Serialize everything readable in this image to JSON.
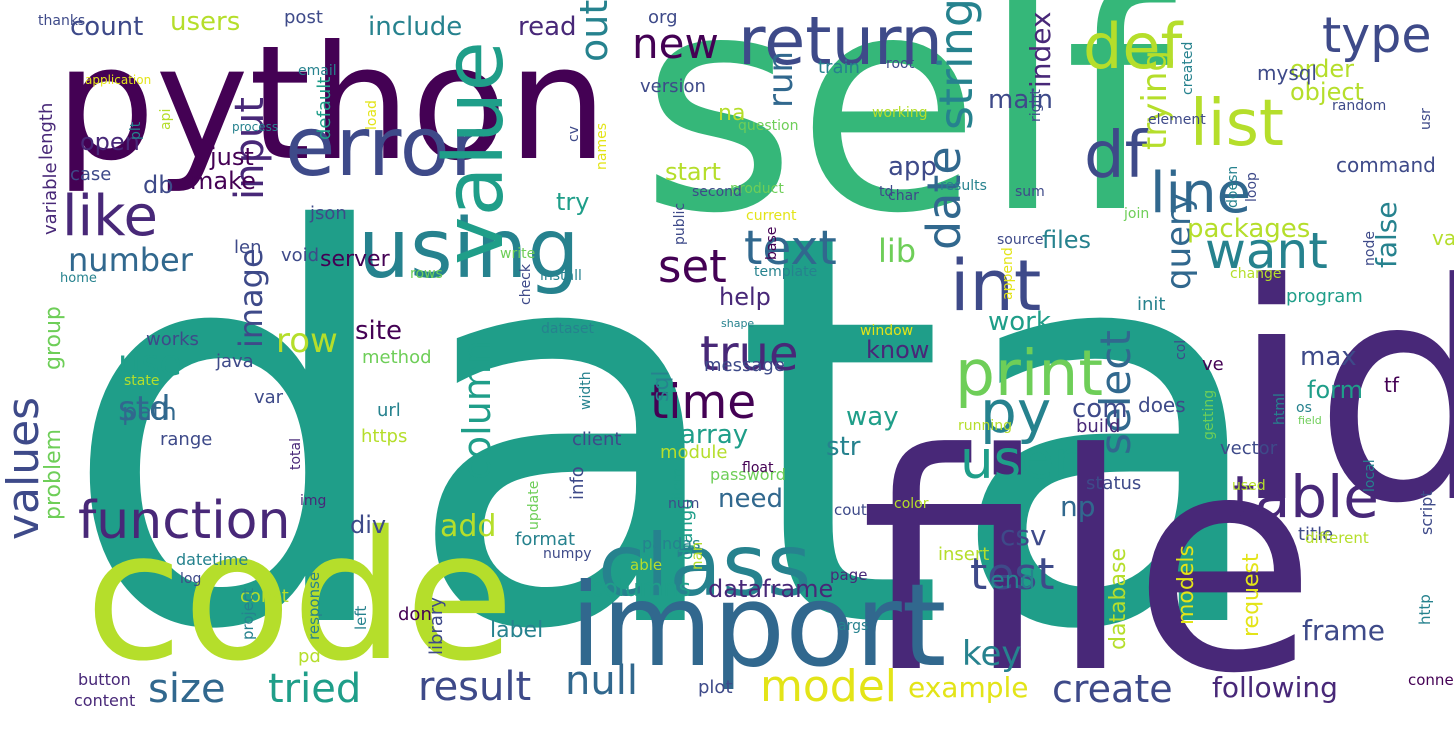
{
  "palette": {
    "dark_purple": "#440154",
    "purple": "#482878",
    "indigo": "#3e4a89",
    "blue": "#31688e",
    "teal": "#26828e",
    "sea": "#1f9e89",
    "green": "#35b779",
    "light_green": "#6ece58",
    "lime": "#b5de2b",
    "yellow": "#e3e418"
  },
  "words": [
    {
      "text": "data",
      "size": 10,
      "color": "sea"
    },
    {
      "text": "self",
      "size": 10,
      "color": "green"
    },
    {
      "text": "file",
      "size": 10,
      "color": "purple"
    },
    {
      "text": "id",
      "size": 10,
      "color": "purple"
    },
    {
      "text": "python",
      "size": 10,
      "color": "dark_purple"
    },
    {
      "text": "code",
      "size": 10,
      "color": "lime"
    },
    {
      "text": "error",
      "size": 8,
      "color": "indigo"
    },
    {
      "text": "import",
      "size": 8,
      "color": "blue"
    },
    {
      "text": "using",
      "size": 7,
      "color": "teal"
    },
    {
      "text": "class",
      "size": 7,
      "color": "teal"
    },
    {
      "text": "return",
      "size": 6,
      "color": "indigo"
    },
    {
      "text": "new",
      "size": 6,
      "color": "dark_purple"
    },
    {
      "text": "def",
      "size": 6,
      "color": "lime"
    },
    {
      "text": "value",
      "size": 6,
      "color": "sea"
    },
    {
      "text": "int",
      "size": 6,
      "color": "indigo"
    },
    {
      "text": "print",
      "size": 6,
      "color": "light_green"
    },
    {
      "text": "df",
      "size": 6,
      "color": "indigo"
    },
    {
      "text": "list",
      "size": 6,
      "color": "lime"
    },
    {
      "text": "line",
      "size": 6,
      "color": "blue"
    },
    {
      "text": "function",
      "size": 5,
      "color": "purple"
    },
    {
      "text": "like",
      "size": 5,
      "color": "purple"
    },
    {
      "text": "table",
      "size": 5,
      "color": "purple"
    },
    {
      "text": "model",
      "size": 5,
      "color": "yellow"
    },
    {
      "text": "user",
      "size": 5,
      "color": "sea"
    },
    {
      "text": "py",
      "size": 5,
      "color": "teal"
    },
    {
      "text": "type",
      "size": 5,
      "color": "indigo"
    },
    {
      "text": "text",
      "size": 5,
      "color": "blue"
    },
    {
      "text": "set",
      "size": 5,
      "color": "dark_purple"
    },
    {
      "text": "want",
      "size": 5,
      "color": "teal"
    },
    {
      "text": "string",
      "size": 5,
      "color": "teal"
    },
    {
      "text": "date",
      "size": 5,
      "color": "blue"
    },
    {
      "text": "time",
      "size": 5,
      "color": "dark_purple"
    },
    {
      "text": "true",
      "size": 5,
      "color": "purple"
    },
    {
      "text": "test",
      "size": 5,
      "color": "indigo"
    },
    {
      "text": "select",
      "size": 5,
      "color": "blue"
    },
    {
      "text": "null",
      "size": 5,
      "color": "blue"
    },
    {
      "text": "result",
      "size": 5,
      "color": "indigo"
    },
    {
      "text": "create",
      "size": 5,
      "color": "indigo"
    },
    {
      "text": "size",
      "size": 5,
      "color": "blue"
    },
    {
      "text": "tried",
      "size": 5,
      "color": "sea"
    },
    {
      "text": "values",
      "size": 5,
      "color": "indigo"
    },
    {
      "text": "use",
      "size": 5,
      "color": "sea"
    },
    {
      "text": "std",
      "size": 5,
      "color": "blue"
    },
    {
      "text": "number",
      "size": 5,
      "color": "blue"
    },
    {
      "text": "column",
      "size": 5,
      "color": "sea"
    },
    {
      "text": "output",
      "size": 5,
      "color": "teal"
    },
    {
      "text": "run",
      "size": 5,
      "color": "blue"
    },
    {
      "text": "input",
      "size": 5,
      "color": "purple"
    },
    {
      "text": "row",
      "size": 5,
      "color": "lime"
    },
    {
      "text": "image",
      "size": 4,
      "color": "indigo"
    },
    {
      "text": "key",
      "size": 4,
      "color": "teal"
    },
    {
      "text": "query",
      "size": 4,
      "color": "blue"
    },
    {
      "text": "trying",
      "size": 4,
      "color": "lime"
    },
    {
      "text": "lib",
      "size": 4,
      "color": "light_green"
    },
    {
      "text": "false",
      "size": 4,
      "color": "teal"
    },
    {
      "text": "add",
      "size": 4,
      "color": "lime"
    },
    {
      "text": "csv",
      "size": 4,
      "color": "indigo"
    },
    {
      "text": "np",
      "size": 4,
      "color": "blue"
    },
    {
      "text": "example",
      "size": 4,
      "color": "yellow"
    },
    {
      "text": "following",
      "size": 4,
      "color": "purple"
    },
    {
      "text": "frame",
      "size": 4,
      "color": "indigo"
    },
    {
      "text": "count",
      "size": 4,
      "color": "indigo"
    },
    {
      "text": "users",
      "size": 4,
      "color": "lime"
    },
    {
      "text": "include",
      "size": 4,
      "color": "teal"
    },
    {
      "text": "read",
      "size": 4,
      "color": "purple"
    },
    {
      "text": "object",
      "size": 4,
      "color": "lime"
    },
    {
      "text": "order",
      "size": 4,
      "color": "lime"
    },
    {
      "text": "index",
      "size": 4,
      "color": "purple"
    },
    {
      "text": "main",
      "size": 4,
      "color": "indigo"
    },
    {
      "text": "app",
      "size": 4,
      "color": "indigo"
    },
    {
      "text": "packages",
      "size": 4,
      "color": "lime"
    },
    {
      "text": "files",
      "size": 4,
      "color": "teal"
    },
    {
      "text": "work",
      "size": 4,
      "color": "sea"
    },
    {
      "text": "max",
      "size": 4,
      "color": "indigo"
    },
    {
      "text": "form",
      "size": 4,
      "color": "sea"
    },
    {
      "text": "know",
      "size": 4,
      "color": "purple"
    },
    {
      "text": "site",
      "size": 4,
      "color": "dark_purple"
    },
    {
      "text": "way",
      "size": 4,
      "color": "sea"
    },
    {
      "text": "str",
      "size": 4,
      "color": "teal"
    },
    {
      "text": "array",
      "size": 4,
      "color": "sea"
    },
    {
      "text": "com",
      "size": 4,
      "color": "indigo"
    },
    {
      "text": "need",
      "size": 4,
      "color": "blue"
    },
    {
      "text": "help",
      "size": 4,
      "color": "purple"
    },
    {
      "text": "start",
      "size": 4,
      "color": "lime"
    },
    {
      "text": "try",
      "size": 4,
      "color": "sea"
    },
    {
      "text": "open",
      "size": 4,
      "color": "purple"
    },
    {
      "text": "just",
      "size": 4,
      "color": "dark_purple"
    },
    {
      "text": "make",
      "size": 4,
      "color": "dark_purple"
    },
    {
      "text": "db",
      "size": 4,
      "color": "indigo"
    },
    {
      "text": "path",
      "size": 4,
      "color": "blue"
    },
    {
      "text": "div",
      "size": 4,
      "color": "indigo"
    },
    {
      "text": "columns",
      "size": 4,
      "color": "sea"
    },
    {
      "text": "dataframe",
      "size": 4,
      "color": "purple"
    },
    {
      "text": "end",
      "size": 4,
      "color": "teal"
    },
    {
      "text": "database",
      "size": 3,
      "color": "lime"
    },
    {
      "text": "models",
      "size": 3,
      "color": "yellow"
    },
    {
      "text": "request",
      "size": 3,
      "color": "yellow"
    },
    {
      "text": "label",
      "size": 3,
      "color": "teal"
    },
    {
      "text": "server",
      "size": 3,
      "color": "dark_purple"
    },
    {
      "text": "sql",
      "size": 3,
      "color": "teal"
    },
    {
      "text": "na",
      "size": 3,
      "color": "lime"
    },
    {
      "text": "group",
      "size": 3,
      "color": "light_green"
    },
    {
      "text": "problem",
      "size": 3,
      "color": "light_green"
    },
    {
      "text": "does",
      "size": 3,
      "color": "indigo"
    },
    {
      "text": "tf",
      "size": 3,
      "color": "dark_purple"
    },
    {
      "text": "val",
      "size": 3,
      "color": "lime"
    },
    {
      "text": "command",
      "size": 3,
      "color": "indigo"
    },
    {
      "text": "mysql",
      "size": 3,
      "color": "indigo"
    },
    {
      "text": "version",
      "size": 3,
      "color": "indigo"
    },
    {
      "text": "train",
      "size": 3,
      "color": "teal"
    },
    {
      "text": "post",
      "size": 3,
      "color": "indigo"
    },
    {
      "text": "org",
      "size": 3,
      "color": "indigo"
    },
    {
      "text": "java",
      "size": 3,
      "color": "indigo"
    },
    {
      "text": "default",
      "size": 3,
      "color": "sea"
    },
    {
      "text": "length",
      "size": 3,
      "color": "purple"
    },
    {
      "text": "variable",
      "size": 3,
      "color": "purple"
    },
    {
      "text": "case",
      "size": 3,
      "color": "indigo"
    },
    {
      "text": "len",
      "size": 3,
      "color": "indigo"
    },
    {
      "text": "json",
      "size": 3,
      "color": "indigo"
    },
    {
      "text": "void",
      "size": 3,
      "color": "indigo"
    },
    {
      "text": "works",
      "size": 3,
      "color": "indigo"
    },
    {
      "text": "method",
      "size": 3,
      "color": "light_green"
    },
    {
      "text": "url",
      "size": 3,
      "color": "teal"
    },
    {
      "text": "https",
      "size": 3,
      "color": "lime"
    },
    {
      "text": "range",
      "size": 3,
      "color": "indigo"
    },
    {
      "text": "var",
      "size": 3,
      "color": "indigo"
    },
    {
      "text": "message",
      "size": 3,
      "color": "indigo"
    },
    {
      "text": "info",
      "size": 3,
      "color": "indigo"
    },
    {
      "text": "client",
      "size": 3,
      "color": "indigo"
    },
    {
      "text": "format",
      "size": 3,
      "color": "teal"
    },
    {
      "text": "module",
      "size": 3,
      "color": "lime"
    },
    {
      "text": "django",
      "size": 3,
      "color": "sea"
    },
    {
      "text": "build",
      "size": 3,
      "color": "purple"
    },
    {
      "text": "init",
      "size": 3,
      "color": "teal"
    },
    {
      "text": "program",
      "size": 3,
      "color": "sea"
    },
    {
      "text": "ve",
      "size": 3,
      "color": "dark_purple"
    },
    {
      "text": "script",
      "size": 3,
      "color": "indigo"
    },
    {
      "text": "title",
      "size": 3,
      "color": "indigo"
    },
    {
      "text": "status",
      "size": 3,
      "color": "indigo"
    },
    {
      "text": "vector",
      "size": 3,
      "color": "indigo"
    },
    {
      "text": "insert",
      "size": 3,
      "color": "lime"
    },
    {
      "text": "plot",
      "size": 3,
      "color": "indigo"
    },
    {
      "text": "library",
      "size": 3,
      "color": "indigo"
    },
    {
      "text": "don",
      "size": 3,
      "color": "dark_purple"
    },
    {
      "text": "pd",
      "size": 3,
      "color": "lime"
    },
    {
      "text": "const",
      "size": 3,
      "color": "lime"
    },
    {
      "text": "pandas",
      "size": 2,
      "color": "teal"
    },
    {
      "text": "datetime",
      "size": 2,
      "color": "teal"
    },
    {
      "text": "button",
      "size": 2,
      "color": "purple"
    },
    {
      "text": "content",
      "size": 2,
      "color": "purple"
    },
    {
      "text": "project",
      "size": 2,
      "color": "teal"
    },
    {
      "text": "response",
      "size": 2,
      "color": "teal"
    },
    {
      "text": "left",
      "size": 2,
      "color": "teal"
    },
    {
      "text": "numpy",
      "size": 2,
      "color": "indigo"
    },
    {
      "text": "nan",
      "size": 2,
      "color": "lime"
    },
    {
      "text": "able",
      "size": 2,
      "color": "lime"
    },
    {
      "text": "page",
      "size": 2,
      "color": "purple"
    },
    {
      "text": "different",
      "size": 2,
      "color": "lime"
    },
    {
      "text": "connection",
      "size": 2,
      "color": "dark_purple"
    },
    {
      "text": "http",
      "size": 2,
      "color": "teal"
    },
    {
      "text": "password",
      "size": 2,
      "color": "light_green"
    },
    {
      "text": "float",
      "size": 2,
      "color": "dark_purple"
    },
    {
      "text": "num",
      "size": 2,
      "color": "indigo"
    },
    {
      "text": "cout",
      "size": 2,
      "color": "indigo"
    },
    {
      "text": "color",
      "size": 2,
      "color": "lime"
    },
    {
      "text": "args",
      "size": 2,
      "color": "teal"
    },
    {
      "text": "log",
      "size": 2,
      "color": "indigo"
    },
    {
      "text": "img",
      "size": 2,
      "color": "purple"
    },
    {
      "text": "total",
      "size": 2,
      "color": "purple"
    },
    {
      "text": "state",
      "size": 2,
      "color": "lime"
    },
    {
      "text": "dataset",
      "size": 2,
      "color": "teal"
    },
    {
      "text": "width",
      "size": 2,
      "color": "teal"
    },
    {
      "text": "item",
      "size": 2,
      "color": "sea"
    },
    {
      "text": "update",
      "size": 2,
      "color": "light_green"
    },
    {
      "text": "product",
      "size": 2,
      "color": "light_green"
    },
    {
      "text": "char",
      "size": 2,
      "color": "indigo"
    },
    {
      "text": "install",
      "size": 2,
      "color": "teal"
    },
    {
      "text": "check",
      "size": 2,
      "color": "indigo"
    },
    {
      "text": "write",
      "size": 2,
      "color": "light_green"
    },
    {
      "text": "rows",
      "size": 2,
      "color": "light_green"
    },
    {
      "text": "home",
      "size": 2,
      "color": "teal"
    },
    {
      "text": "template",
      "size": 1,
      "color": "teal"
    },
    {
      "text": "source",
      "size": 2,
      "color": "indigo"
    },
    {
      "text": "change",
      "size": 2,
      "color": "lime"
    },
    {
      "text": "node",
      "size": 2,
      "color": "indigo"
    },
    {
      "text": "doesn",
      "size": 2,
      "color": "teal"
    },
    {
      "text": "join",
      "size": 2,
      "color": "light_green"
    },
    {
      "text": "sum",
      "size": 2,
      "color": "indigo"
    },
    {
      "text": "loop",
      "size": 2,
      "color": "indigo"
    },
    {
      "text": "results",
      "size": 2,
      "color": "teal"
    },
    {
      "text": "td",
      "size": 2,
      "color": "indigo"
    },
    {
      "text": "second",
      "size": 2,
      "color": "indigo"
    },
    {
      "text": "base",
      "size": 2,
      "color": "dark_purple"
    },
    {
      "text": "current",
      "size": 2,
      "color": "yellow"
    },
    {
      "text": "public",
      "size": 2,
      "color": "indigo"
    },
    {
      "text": "append",
      "size": 2,
      "color": "yellow"
    },
    {
      "text": "col",
      "size": 2,
      "color": "indigo"
    },
    {
      "text": "getting",
      "size": 2,
      "color": "light_green"
    },
    {
      "text": "local",
      "size": 2,
      "color": "teal"
    },
    {
      "text": "html",
      "size": 2,
      "color": "teal"
    },
    {
      "text": "os",
      "size": 2,
      "color": "teal"
    },
    {
      "text": "field",
      "size": 2,
      "color": "light_green"
    },
    {
      "text": "running",
      "size": 2,
      "color": "lime"
    },
    {
      "text": "window",
      "size": 1,
      "color": "yellow"
    },
    {
      "text": "shape",
      "size": 2,
      "color": "teal"
    },
    {
      "text": "used",
      "size": 2,
      "color": "lime"
    },
    {
      "text": "application",
      "size": 1,
      "color": "yellow"
    },
    {
      "text": "plt",
      "size": 2,
      "color": "teal"
    },
    {
      "text": "api",
      "size": 1,
      "color": "lime"
    },
    {
      "text": "process",
      "size": 2,
      "color": "teal"
    },
    {
      "text": "email",
      "size": 2,
      "color": "teal"
    },
    {
      "text": "load",
      "size": 1,
      "color": "yellow"
    },
    {
      "text": "cv",
      "size": 2,
      "color": "indigo"
    },
    {
      "text": "names",
      "size": 2,
      "color": "yellow"
    },
    {
      "text": "question",
      "size": 2,
      "color": "light_green"
    },
    {
      "text": "working",
      "size": 2,
      "color": "lime"
    },
    {
      "text": "root",
      "size": 2,
      "color": "indigo"
    },
    {
      "text": "right",
      "size": 2,
      "color": "indigo"
    },
    {
      "text": "element",
      "size": 2,
      "color": "indigo"
    },
    {
      "text": "created",
      "size": 2,
      "color": "teal"
    },
    {
      "text": "random",
      "size": 2,
      "color": "indigo"
    },
    {
      "text": "usr",
      "size": 2,
      "color": "indigo"
    },
    {
      "text": "thanks",
      "size": 2,
      "color": "indigo"
    },
    {
      "text": "event",
      "size": 2,
      "color": "lime"
    },
    {
      "text": "map",
      "size": 2,
      "color": "indigo"
    }
  ]
}
